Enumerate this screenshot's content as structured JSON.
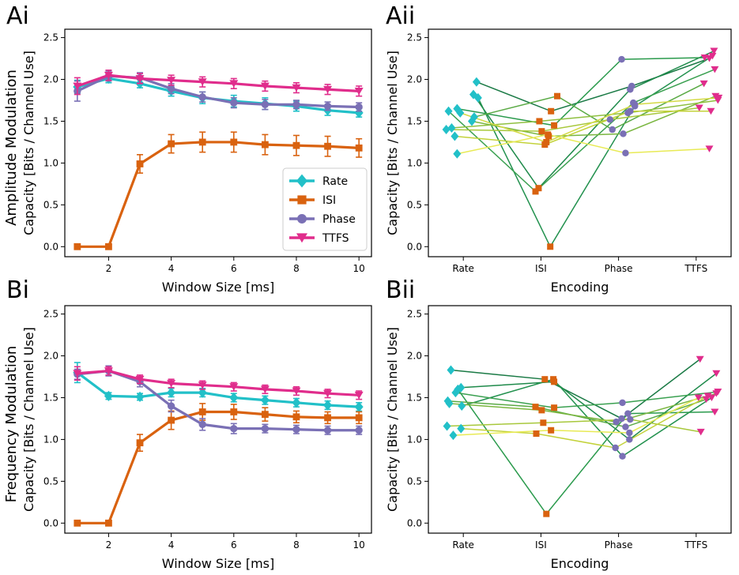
{
  "colors": {
    "Rate": "#22c0c8",
    "ISI": "#d9620f",
    "Phase": "#7a70b5",
    "TTFS": "#e02d8c"
  },
  "row_labels": [
    "Amplitude Modulation",
    "Frequency Modulation"
  ],
  "chart_data": [
    {
      "id": "Ai",
      "panel_label": "Ai",
      "type": "line",
      "xlabel": "Window Size [ms]",
      "ylabel": "Capacity [Bits / Channel Use]",
      "xlim": [
        0.6,
        10.4
      ],
      "ylim": [
        -0.12,
        2.6
      ],
      "xticks": [
        "2",
        "4",
        "6",
        "8",
        "10"
      ],
      "yticks": [
        "0.0",
        "0.5",
        "1.0",
        "1.5",
        "2.0",
        "2.5"
      ],
      "x": [
        1,
        2,
        3,
        4,
        5,
        6,
        7,
        8,
        9,
        10
      ],
      "series": [
        {
          "name": "Rate",
          "values": [
            1.91,
            2.01,
            1.95,
            1.86,
            1.78,
            1.74,
            1.71,
            1.68,
            1.63,
            1.6
          ],
          "errors": [
            0.08,
            0.05,
            0.05,
            0.06,
            0.07,
            0.07,
            0.07,
            0.06,
            0.06,
            0.05
          ]
        },
        {
          "name": "ISI",
          "values": [
            0.0,
            0.0,
            0.99,
            1.23,
            1.25,
            1.25,
            1.22,
            1.21,
            1.2,
            1.18
          ],
          "errors": [
            0,
            0,
            0.11,
            0.11,
            0.12,
            0.12,
            0.12,
            0.12,
            0.12,
            0.11
          ]
        },
        {
          "name": "Phase",
          "values": [
            1.86,
            2.04,
            2.02,
            1.89,
            1.79,
            1.72,
            1.7,
            1.7,
            1.68,
            1.67
          ],
          "errors": [
            0.12,
            0.06,
            0.06,
            0.06,
            0.06,
            0.06,
            0.06,
            0.05,
            0.05,
            0.05
          ]
        },
        {
          "name": "TTFS",
          "values": [
            1.92,
            2.05,
            2.01,
            1.99,
            1.97,
            1.95,
            1.92,
            1.9,
            1.88,
            1.86
          ],
          "errors": [
            0.1,
            0.06,
            0.06,
            0.06,
            0.06,
            0.06,
            0.06,
            0.06,
            0.06,
            0.06
          ]
        }
      ],
      "legend": [
        "Rate",
        "ISI",
        "Phase",
        "TTFS"
      ],
      "legend_position": "lower-right"
    },
    {
      "id": "Aii",
      "panel_label": "Aii",
      "type": "scatter-lines",
      "xlabel": "Encoding",
      "ylabel": "Capacity [Bits / Channel Use]",
      "categories": [
        "Rate",
        "ISI",
        "Phase",
        "TTFS"
      ],
      "xlim": [
        -0.45,
        3.45
      ],
      "ylim": [
        -0.12,
        2.6
      ],
      "yticks": [
        "0.0",
        "0.5",
        "1.0",
        "1.5",
        "2.0",
        "2.5"
      ],
      "lines": [
        {
          "values": [
            1.97,
            1.62,
            1.92,
            2.25
          ],
          "offsets": [
            0.17,
            0.13,
            0.17,
            0.17
          ],
          "color": "#1a7a45"
        },
        {
          "values": [
            1.82,
            0.7,
            1.88,
            2.34
          ],
          "offsets": [
            0.13,
            -0.03,
            0.15,
            0.23
          ],
          "color": "#1e8a4a"
        },
        {
          "values": [
            1.78,
            0.0,
            1.68,
            2.28
          ],
          "offsets": [
            0.19,
            0.12,
            0.21,
            0.21
          ],
          "color": "#22914e"
        },
        {
          "values": [
            1.65,
            1.45,
            2.24,
            2.26
          ],
          "offsets": [
            -0.08,
            0.17,
            0.04,
            0.11
          ],
          "color": "#2a9a4c"
        },
        {
          "values": [
            1.62,
            0.66,
            1.72,
            2.12
          ],
          "offsets": [
            -0.19,
            -0.07,
            0.19,
            0.24
          ],
          "color": "#3aa050"
        },
        {
          "values": [
            1.55,
            1.8,
            1.4,
            1.95
          ],
          "offsets": [
            0.14,
            0.21,
            -0.08,
            0.1
          ],
          "color": "#5aaa45"
        },
        {
          "values": [
            1.5,
            1.32,
            1.35,
            1.8
          ],
          "offsets": [
            0.11,
            0.1,
            0.06,
            0.25
          ],
          "color": "#7ab640"
        },
        {
          "values": [
            1.42,
            1.5,
            1.6,
            1.75
          ],
          "offsets": [
            -0.15,
            -0.02,
            0.12,
            0.28
          ],
          "color": "#8fc040"
        },
        {
          "values": [
            1.4,
            1.38,
            1.52,
            1.66
          ],
          "offsets": [
            -0.22,
            0.01,
            -0.11,
            0.04
          ],
          "color": "#a8c83c"
        },
        {
          "values": [
            1.32,
            1.22,
            1.62,
            1.62
          ],
          "offsets": [
            -0.11,
            0.05,
            0.15,
            0.19
          ],
          "color": "#c3d23a"
        },
        {
          "values": [
            1.6,
            1.25,
            1.7,
            1.78
          ],
          "offsets": [
            -0.04,
            0.07,
            0.21,
            0.29
          ],
          "color": "#d4da45"
        },
        {
          "values": [
            1.11,
            1.34,
            1.12,
            1.17
          ],
          "offsets": [
            -0.08,
            0.09,
            0.09,
            0.17
          ],
          "color": "#e8ea55"
        }
      ]
    },
    {
      "id": "Bi",
      "panel_label": "Bi",
      "type": "line",
      "xlabel": "Window Size [ms]",
      "ylabel": "Capacity [Bits / Channel Use]",
      "xlim": [
        0.6,
        10.4
      ],
      "ylim": [
        -0.12,
        2.6
      ],
      "xticks": [
        "2",
        "4",
        "6",
        "8",
        "10"
      ],
      "yticks": [
        "0.0",
        "0.5",
        "1.0",
        "1.5",
        "2.0",
        "2.5"
      ],
      "x": [
        1,
        2,
        3,
        4,
        5,
        6,
        7,
        8,
        9,
        10
      ],
      "series": [
        {
          "name": "Rate",
          "values": [
            1.8,
            1.52,
            1.51,
            1.56,
            1.56,
            1.5,
            1.47,
            1.44,
            1.41,
            1.39
          ],
          "errors": [
            0.12,
            0.04,
            0.04,
            0.05,
            0.05,
            0.05,
            0.05,
            0.05,
            0.05,
            0.05
          ]
        },
        {
          "name": "ISI",
          "values": [
            0.0,
            0.0,
            0.96,
            1.23,
            1.33,
            1.33,
            1.3,
            1.27,
            1.26,
            1.26
          ],
          "errors": [
            0,
            0,
            0.1,
            0.11,
            0.1,
            0.09,
            0.08,
            0.07,
            0.07,
            0.07
          ]
        },
        {
          "name": "Phase",
          "values": [
            1.78,
            1.82,
            1.69,
            1.4,
            1.18,
            1.13,
            1.13,
            1.12,
            1.11,
            1.11
          ],
          "errors": [
            0.06,
            0.06,
            0.06,
            0.07,
            0.07,
            0.06,
            0.05,
            0.05,
            0.05,
            0.05
          ]
        },
        {
          "name": "TTFS",
          "values": [
            1.79,
            1.82,
            1.72,
            1.67,
            1.65,
            1.63,
            1.6,
            1.58,
            1.55,
            1.53
          ],
          "errors": [
            0.08,
            0.05,
            0.05,
            0.05,
            0.05,
            0.05,
            0.05,
            0.05,
            0.05,
            0.05
          ]
        }
      ]
    },
    {
      "id": "Bii",
      "panel_label": "Bii",
      "type": "scatter-lines",
      "xlabel": "Encoding",
      "ylabel": "Capacity [Bits / Channel Use]",
      "categories": [
        "Rate",
        "ISI",
        "Phase",
        "TTFS"
      ],
      "xlim": [
        -0.45,
        3.45
      ],
      "ylim": [
        -0.12,
        2.6
      ],
      "yticks": [
        "0.0",
        "0.5",
        "1.0",
        "1.5",
        "2.0",
        "2.5"
      ],
      "lines": [
        {
          "values": [
            1.83,
            1.72,
            1.25,
            1.96
          ],
          "offsets": [
            -0.16,
            0.05,
            0.04,
            0.05
          ],
          "color": "#1a7a45"
        },
        {
          "values": [
            1.62,
            1.69,
            1.0,
            1.79
          ],
          "offsets": [
            -0.03,
            0.17,
            0.14,
            0.26
          ],
          "color": "#1e8a4a"
        },
        {
          "values": [
            1.4,
            1.72,
            0.8,
            1.5
          ],
          "offsets": [
            -0.02,
            0.16,
            0.05,
            0.2
          ],
          "color": "#22914e"
        },
        {
          "values": [
            1.6,
            0.11,
            1.31,
            1.33
          ],
          "offsets": [
            -0.07,
            0.07,
            0.12,
            0.24
          ],
          "color": "#2a9a4c"
        },
        {
          "values": [
            1.56,
            1.38,
            1.44,
            1.57
          ],
          "offsets": [
            -0.1,
            0.17,
            0.05,
            0.28
          ],
          "color": "#3aa050"
        },
        {
          "values": [
            1.46,
            1.39,
            1.15,
            1.48
          ],
          "offsets": [
            -0.2,
            -0.07,
            0.09,
            0.13
          ],
          "color": "#5aaa45"
        },
        {
          "values": [
            1.43,
            1.35,
            1.21,
            1.55
          ],
          "offsets": [
            -0.18,
            0.01,
            -0.03,
            0.26
          ],
          "color": "#7ab640"
        },
        {
          "values": [
            1.16,
            1.2,
            1.24,
            1.09
          ],
          "offsets": [
            -0.21,
            0.03,
            0.15,
            0.06
          ],
          "color": "#a8c83c"
        },
        {
          "values": [
            1.13,
            1.07,
            0.9,
            1.52
          ],
          "offsets": [
            -0.03,
            -0.06,
            -0.04,
            0.15
          ],
          "color": "#c3d23a"
        },
        {
          "values": [
            1.05,
            1.11,
            1.08,
            1.5
          ],
          "offsets": [
            -0.13,
            0.13,
            0.14,
            0.03
          ],
          "color": "#e8ea55"
        }
      ]
    }
  ]
}
